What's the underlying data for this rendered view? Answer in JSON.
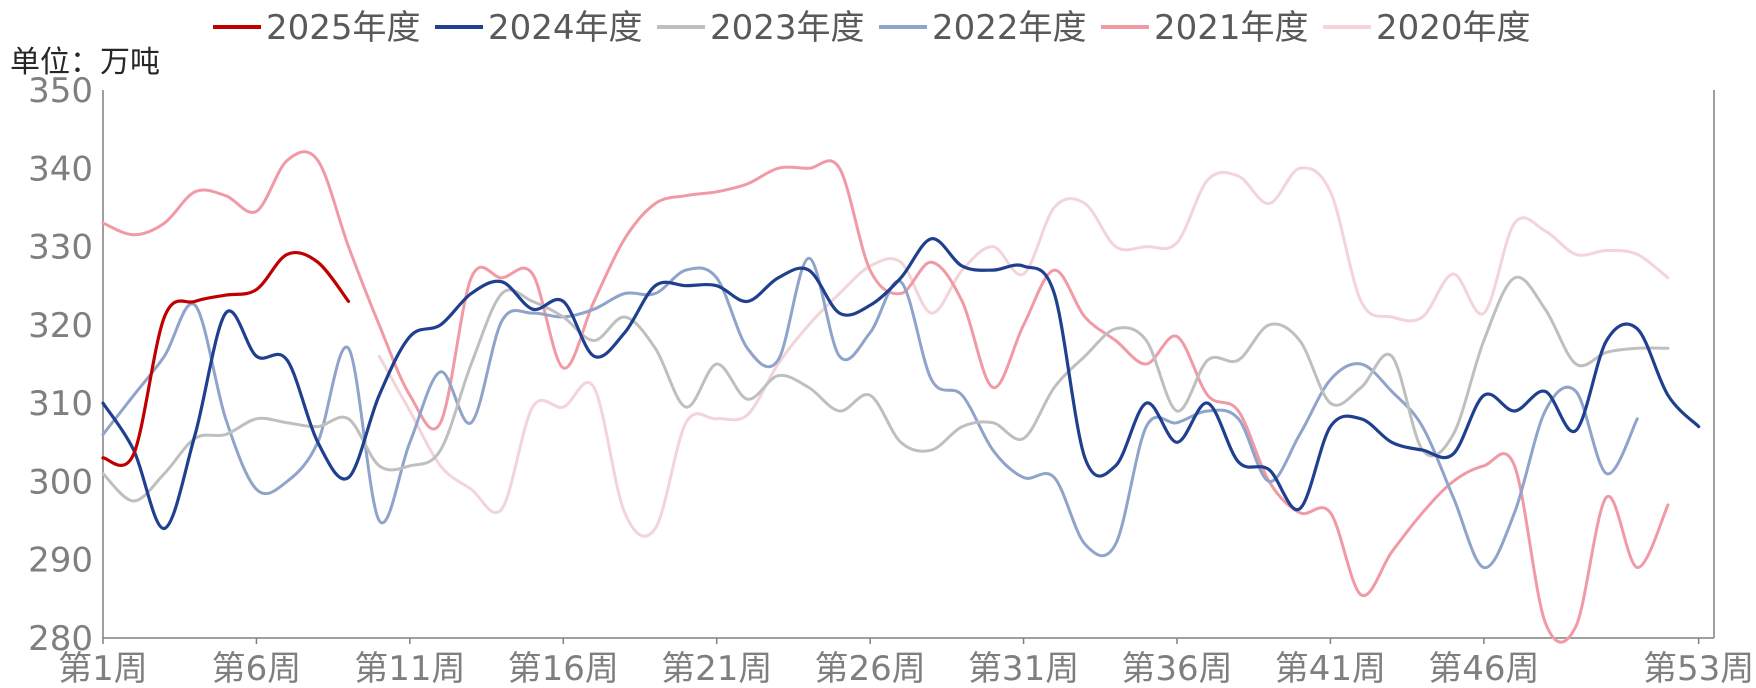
{
  "unit_label": "单位：万吨",
  "chart_data": {
    "type": "line",
    "ylim": [
      280,
      350
    ],
    "y_ticks": [
      280,
      290,
      300,
      310,
      320,
      330,
      340,
      350
    ],
    "x_tick_labels": [
      {
        "week": 1,
        "label": "第1周"
      },
      {
        "week": 6,
        "label": "第6周"
      },
      {
        "week": 11,
        "label": "第11周"
      },
      {
        "week": 16,
        "label": "第16周"
      },
      {
        "week": 21,
        "label": "第21周"
      },
      {
        "week": 26,
        "label": "第26周"
      },
      {
        "week": 31,
        "label": "第31周"
      },
      {
        "week": 36,
        "label": "第36周"
      },
      {
        "week": 41,
        "label": "第41周"
      },
      {
        "week": 46,
        "label": "第46周"
      },
      {
        "week": 53,
        "label": "第53周"
      }
    ],
    "legend_position": "top",
    "series": [
      {
        "name": "2025年度",
        "color": "#c00000",
        "width": 3.2,
        "start_week": 1,
        "values": [
          303,
          303.5,
          321,
          323,
          323.8,
          324.5,
          329,
          328,
          323
        ]
      },
      {
        "name": "2024年度",
        "color": "#1f3f8f",
        "width": 3.2,
        "start_week": 1,
        "values": [
          310,
          304,
          294,
          306,
          321.5,
          316,
          315.5,
          305,
          300.5,
          311,
          318.5,
          320,
          324,
          325.5,
          322,
          323,
          316,
          319,
          325,
          325,
          325,
          323,
          326,
          327,
          321.5,
          322.5,
          326,
          331,
          327.5,
          327,
          327.5,
          324,
          303,
          302,
          310,
          305,
          310,
          302.5,
          301.5,
          296.5,
          307,
          308,
          305,
          304,
          303.5,
          311,
          309,
          311.5,
          306.5,
          318,
          319.5,
          311,
          307
        ]
      },
      {
        "name": "2023年度",
        "color": "#bfbfbf",
        "width": 3,
        "start_week": 1,
        "values": [
          301,
          297.5,
          301,
          305.5,
          306,
          308,
          307.5,
          307,
          308,
          302,
          302,
          304,
          315,
          324,
          323,
          321,
          318,
          321,
          317,
          309.5,
          315,
          310.5,
          313.5,
          312,
          309,
          311,
          305,
          304,
          307,
          307.5,
          305.5,
          312,
          316,
          319.5,
          318,
          309,
          315.5,
          315.5,
          320,
          318,
          310,
          312,
          316,
          304,
          306,
          318,
          326,
          322,
          315,
          316.5,
          317,
          317
        ]
      },
      {
        "name": "2022年度",
        "color": "#8fa3cb",
        "width": 3,
        "start_week": 1,
        "values": [
          306,
          311,
          316,
          322.5,
          308,
          299,
          300,
          305,
          317,
          295,
          305,
          314,
          307.5,
          320.5,
          321.5,
          321,
          322,
          324,
          324,
          327,
          326,
          317,
          315.5,
          328.5,
          316,
          319,
          325.5,
          313,
          311,
          304,
          300.5,
          300.5,
          292,
          292,
          307,
          307.5,
          309,
          308,
          300,
          306,
          313,
          315,
          311.5,
          307,
          298,
          289,
          296,
          309,
          311.5,
          301,
          308
        ]
      },
      {
        "name": "2021年度",
        "color": "#f19aa6",
        "width": 3,
        "start_week": 1,
        "values": [
          333,
          331.5,
          333,
          337,
          336.5,
          334.5,
          341,
          341,
          330,
          320,
          311,
          307.5,
          326,
          326,
          326.5,
          314.5,
          323,
          331,
          335.5,
          336.5,
          337,
          338,
          340,
          340,
          340,
          327,
          324,
          328,
          323,
          312,
          320,
          327,
          321,
          318,
          315,
          318.5,
          311,
          309,
          300,
          296,
          296,
          285.5,
          291,
          296,
          300,
          302,
          302,
          282,
          281.5,
          298,
          289,
          297
        ]
      },
      {
        "name": "2020年度",
        "color": "#f2d4d9",
        "width": 3,
        "start_week": 10,
        "values": [
          316,
          309,
          302,
          299,
          296.5,
          309.5,
          309.5,
          312,
          296,
          294,
          307.5,
          308,
          308.5,
          315,
          320,
          324,
          327.5,
          328,
          321.5,
          327,
          330,
          326.5,
          335,
          335.5,
          330,
          330,
          330.5,
          338.5,
          339,
          335.5,
          340,
          337,
          323,
          321,
          321,
          326.5,
          321.5,
          333,
          332,
          329,
          329.5,
          329,
          326
        ]
      }
    ]
  }
}
